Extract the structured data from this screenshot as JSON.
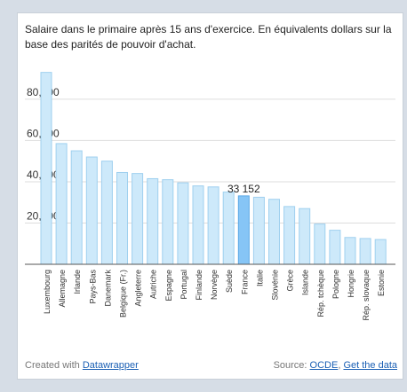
{
  "title": "Salaire dans le primaire après 15 ans d'exercice. En équivalents dollars sur la base des parités de pouvoir d'achat.",
  "footer": {
    "created_with": "Created with",
    "datawrapper_link": "Datawrapper",
    "source_label": "Source:",
    "source_link": "OCDE",
    "separator": ",",
    "data_link": "Get the data"
  },
  "colors": {
    "bar": "#cde9fa",
    "bar_stroke": "#9fd0ef",
    "highlight": "#86c5f6",
    "highlight_stroke": "#5aa8e6",
    "grid": "#dddddd",
    "axis": "#555555",
    "text": "#333333"
  },
  "chart_data": {
    "type": "bar",
    "title": "Salaire dans le primaire après 15 ans d'exercice. En équivalents dollars sur la base des parités de pouvoir d'achat.",
    "xlabel": "",
    "ylabel": "",
    "ylim": [
      0,
      95000
    ],
    "yticks": [
      20000,
      40000,
      60000,
      80000
    ],
    "ytick_labels": [
      "20,000",
      "40,000",
      "60,000",
      "80,000"
    ],
    "grid": true,
    "categories": [
      "Luxembourg",
      "Allemagne",
      "Irlande",
      "Pays-Bas",
      "Danemark",
      "Belgique (Fr.)",
      "Angleterre",
      "Autriche",
      "Espagne",
      "Portugal",
      "Finlande",
      "Norvège",
      "Suède",
      "France",
      "Italie",
      "Slovénie",
      "Grèce",
      "Islande",
      "Rép. tchèque",
      "Pologne",
      "Hongrie",
      "Rép. slovaque",
      "Estonie"
    ],
    "values": [
      93000,
      58500,
      55000,
      52000,
      50000,
      44500,
      44000,
      41500,
      41000,
      39500,
      38000,
      37500,
      35000,
      33152,
      32500,
      31500,
      28000,
      27000,
      19500,
      16500,
      13000,
      12500,
      12000
    ],
    "highlight_index": 13,
    "highlight_label": "33 152"
  }
}
